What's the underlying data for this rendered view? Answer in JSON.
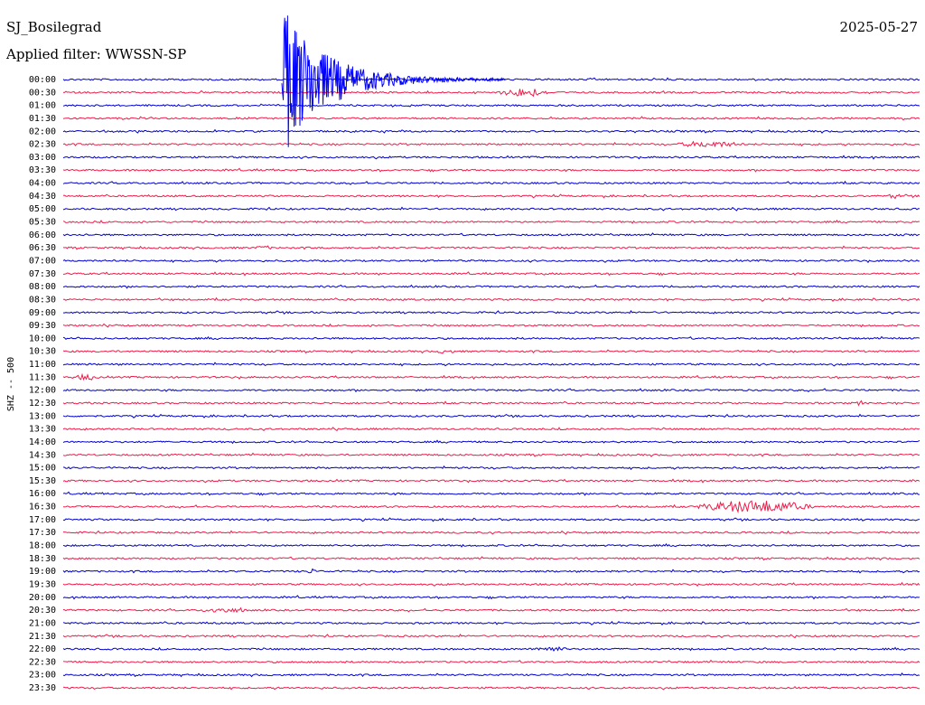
{
  "header": {
    "station": "SJ_Bosilegrad",
    "date": "2025-05-27",
    "filter": "Applied filter: WWSSN-SP"
  },
  "axis_label": "SHZ -- 500",
  "rows": [
    "00:00",
    "00:30",
    "01:00",
    "01:30",
    "02:00",
    "02:30",
    "03:00",
    "03:30",
    "04:00",
    "04:30",
    "05:00",
    "05:30",
    "06:00",
    "06:30",
    "07:00",
    "07:30",
    "08:00",
    "08:30",
    "09:00",
    "09:30",
    "10:00",
    "10:30",
    "11:00",
    "11:30",
    "12:00",
    "12:30",
    "13:00",
    "13:30",
    "14:00",
    "14:30",
    "15:00",
    "15:30",
    "16:00",
    "16:30",
    "17:00",
    "17:30",
    "18:00",
    "18:30",
    "19:00",
    "19:30",
    "20:00",
    "20:30",
    "21:00",
    "21:30",
    "22:00",
    "22:30",
    "23:00",
    "23:30"
  ]
}
